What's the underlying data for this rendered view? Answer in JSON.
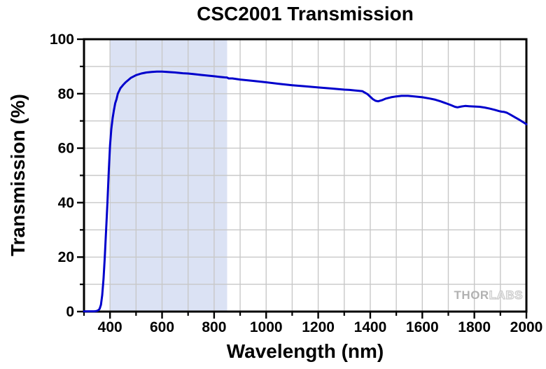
{
  "title": "CSC2001 Transmission",
  "watermark": {
    "solid": "THOR",
    "outline": "LABS"
  },
  "chart_data": {
    "type": "line",
    "title": "CSC2001 Transmission",
    "xlabel": "Wavelength (nm)",
    "ylabel": "Transmission (%)",
    "xlim": [
      300,
      2000
    ],
    "ylim": [
      0,
      100
    ],
    "grid": true,
    "x_grid_step": 100,
    "y_grid_step": 10,
    "grid_color": "#c8c8c8",
    "frame_color": "#000000",
    "background_color": "#ffffff",
    "x_major_ticks": [
      {
        "value": 400,
        "label": "400"
      },
      {
        "value": 600,
        "label": "600"
      },
      {
        "value": 800,
        "label": "800"
      },
      {
        "value": 1000,
        "label": "1000"
      },
      {
        "value": 1200,
        "label": "1200"
      },
      {
        "value": 1400,
        "label": "1400"
      },
      {
        "value": 1600,
        "label": "1600"
      },
      {
        "value": 1800,
        "label": "1800"
      },
      {
        "value": 2000,
        "label": "2000"
      }
    ],
    "x_minor_ticks": [
      300,
      500,
      700,
      900,
      1100,
      1300,
      1500,
      1700,
      1900
    ],
    "y_major_ticks": [
      {
        "value": 0,
        "label": "0"
      },
      {
        "value": 20,
        "label": "20"
      },
      {
        "value": 40,
        "label": "40"
      },
      {
        "value": 60,
        "label": "60"
      },
      {
        "value": 80,
        "label": "80"
      },
      {
        "value": 100,
        "label": "100"
      }
    ],
    "y_minor_ticks": [
      10,
      30,
      50,
      70,
      90
    ],
    "shaded_band": {
      "x_start": 400,
      "x_end": 850,
      "color": "#dbe2f4"
    },
    "series": [
      {
        "name": "Transmission",
        "color": "#0000cc",
        "width": 3,
        "points": [
          [
            300,
            0.1
          ],
          [
            340,
            0.1
          ],
          [
            348,
            0.2
          ],
          [
            355,
            0.5
          ],
          [
            360,
            1
          ],
          [
            365,
            2.5
          ],
          [
            370,
            6
          ],
          [
            375,
            12
          ],
          [
            380,
            20
          ],
          [
            385,
            30
          ],
          [
            390,
            40
          ],
          [
            395,
            51
          ],
          [
            400,
            61
          ],
          [
            405,
            67
          ],
          [
            410,
            71
          ],
          [
            415,
            74
          ],
          [
            420,
            76.5
          ],
          [
            425,
            78
          ],
          [
            430,
            80
          ],
          [
            435,
            81
          ],
          [
            440,
            82
          ],
          [
            450,
            83.2
          ],
          [
            460,
            84.2
          ],
          [
            470,
            85.0
          ],
          [
            480,
            85.8
          ],
          [
            490,
            86.3
          ],
          [
            500,
            86.8
          ],
          [
            520,
            87.4
          ],
          [
            540,
            87.8
          ],
          [
            560,
            88.0
          ],
          [
            580,
            88.1
          ],
          [
            600,
            88.1
          ],
          [
            620,
            88.0
          ],
          [
            650,
            87.8
          ],
          [
            680,
            87.5
          ],
          [
            700,
            87.4
          ],
          [
            720,
            87.2
          ],
          [
            750,
            86.9
          ],
          [
            780,
            86.6
          ],
          [
            800,
            86.4
          ],
          [
            820,
            86.2
          ],
          [
            840,
            86.0
          ],
          [
            850,
            85.9
          ],
          [
            856,
            85.6
          ],
          [
            870,
            85.6
          ],
          [
            900,
            85.2
          ],
          [
            950,
            84.7
          ],
          [
            1000,
            84.2
          ],
          [
            1050,
            83.6
          ],
          [
            1100,
            83.1
          ],
          [
            1150,
            82.7
          ],
          [
            1200,
            82.3
          ],
          [
            1250,
            81.9
          ],
          [
            1300,
            81.5
          ],
          [
            1320,
            81.4
          ],
          [
            1350,
            81.1
          ],
          [
            1370,
            80.9
          ],
          [
            1390,
            79.8
          ],
          [
            1400,
            78.9
          ],
          [
            1410,
            78.0
          ],
          [
            1420,
            77.4
          ],
          [
            1430,
            77.2
          ],
          [
            1445,
            77.6
          ],
          [
            1460,
            78.2
          ],
          [
            1480,
            78.7
          ],
          [
            1500,
            79.0
          ],
          [
            1520,
            79.2
          ],
          [
            1545,
            79.2
          ],
          [
            1570,
            79.0
          ],
          [
            1600,
            78.7
          ],
          [
            1630,
            78.2
          ],
          [
            1650,
            77.8
          ],
          [
            1670,
            77.2
          ],
          [
            1690,
            76.5
          ],
          [
            1710,
            75.8
          ],
          [
            1725,
            75.2
          ],
          [
            1735,
            75.0
          ],
          [
            1750,
            75.3
          ],
          [
            1765,
            75.5
          ],
          [
            1780,
            75.4
          ],
          [
            1800,
            75.3
          ],
          [
            1820,
            75.2
          ],
          [
            1840,
            74.9
          ],
          [
            1860,
            74.5
          ],
          [
            1880,
            74.0
          ],
          [
            1895,
            73.6
          ],
          [
            1905,
            73.4
          ],
          [
            1915,
            73.3
          ],
          [
            1925,
            73.0
          ],
          [
            1940,
            72.2
          ],
          [
            1955,
            71.4
          ],
          [
            1970,
            70.6
          ],
          [
            1985,
            69.7
          ],
          [
            2000,
            68.8
          ]
        ]
      }
    ]
  }
}
